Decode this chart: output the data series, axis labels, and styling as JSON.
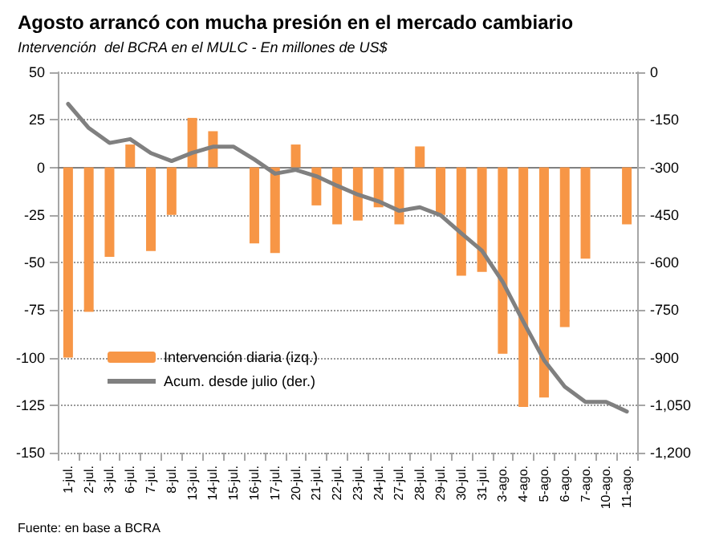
{
  "chart_data": {
    "type": "bar",
    "title": "Agosto arrancó con mucha presión en el mercado cambiario",
    "subtitle": "Intervención  del BCRA en el MULC - En millones de US$",
    "categories": [
      "1-jul.",
      "2-jul.",
      "3-jul.",
      "6-jul.",
      "7-jul.",
      "8-jul.",
      "13-jul.",
      "14-jul.",
      "15-jul.",
      "16-jul.",
      "17-jul.",
      "20-jul.",
      "21-jul.",
      "22-jul.",
      "23-jul.",
      "24-jul.",
      "27-jul.",
      "28-jul.",
      "29-jul.",
      "30-jul.",
      "31-jul.",
      "3-ago.",
      "4-ago.",
      "5-ago.",
      "6-ago.",
      "7-ago.",
      "10-ago.",
      "11-ago."
    ],
    "series": [
      {
        "name": "Intervención diaria (izq.)",
        "color": "#f79646",
        "values": [
          -100,
          -76,
          -47,
          12,
          -44,
          -25,
          26,
          19,
          0,
          -40,
          -45,
          12,
          -20,
          -30,
          -28,
          -21,
          -30,
          11,
          -25,
          -57,
          -55,
          -98,
          -126,
          -121,
          -84,
          -48,
          0,
          -30
        ]
      },
      {
        "name": "Acum. desde julio (der.)",
        "type": "line",
        "axis": "y2",
        "color": "#808080",
        "values": [
          -100,
          -176,
          -223,
          -211,
          -255,
          -280,
          -254,
          -235,
          -235,
          -275,
          -320,
          -308,
          -328,
          -358,
          -386,
          -407,
          -437,
          -426,
          -451,
          -508,
          -563,
          -661,
          -787,
          -908,
          -992,
          -1040,
          -1040,
          -1070
        ]
      }
    ],
    "ylim": [
      -150,
      50
    ],
    "yticks": [
      -150,
      -125,
      -100,
      -75,
      -50,
      -25,
      0,
      25,
      50
    ],
    "y2lim": [
      -1200,
      0
    ],
    "y2ticks": [
      {
        "value": -1200,
        "label": "-1,200"
      },
      {
        "value": -1050,
        "label": "-1,050"
      },
      -900,
      -750,
      -600,
      -450,
      -300,
      -150,
      0
    ],
    "grid": "y",
    "legend": "bottom left",
    "marker": "none",
    "annotations": [
      "Fuente: en base a BCRA"
    ]
  }
}
